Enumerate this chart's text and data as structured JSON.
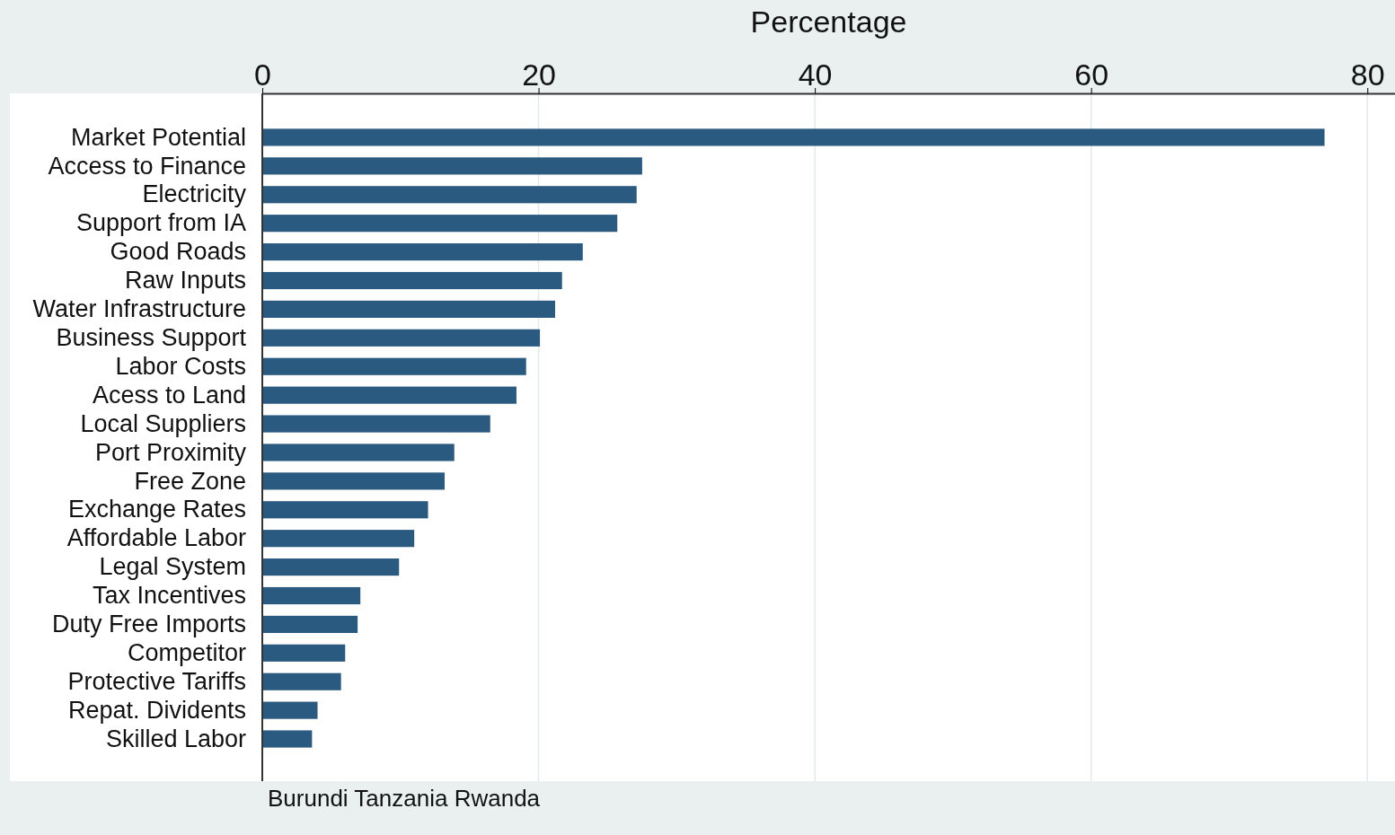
{
  "chart_data": {
    "type": "bar",
    "orientation": "horizontal",
    "xlabel": "Percentage",
    "categories": [
      "Market Potential",
      "Access to Finance",
      "Electricity",
      "Support from IA",
      "Good Roads",
      "Raw Inputs",
      "Water Infrastructure",
      "Business Support",
      "Labor Costs",
      "Acess to Land",
      "Local Suppliers",
      "Port Proximity",
      "Free Zone",
      "Exchange Rates",
      "Affordable Labor",
      "Legal System",
      "Tax Incentives",
      "Duty Free Imports",
      "Competitor",
      "Protective Tariffs",
      "Repat. Dividents",
      "Skilled Labor"
    ],
    "values": [
      76.9,
      27.5,
      27.1,
      25.7,
      23.2,
      21.7,
      21.2,
      20.1,
      19.1,
      18.4,
      16.5,
      13.9,
      13.2,
      12.0,
      11.0,
      9.9,
      7.1,
      6.9,
      6.0,
      5.7,
      4.0,
      3.6
    ],
    "color": "#2b5a80",
    "xlim": [
      0,
      82
    ],
    "xticks": [
      0,
      20,
      40,
      60,
      80
    ],
    "grid": "x",
    "annotations": [
      "Burundi Tanzania Rwanda"
    ]
  }
}
